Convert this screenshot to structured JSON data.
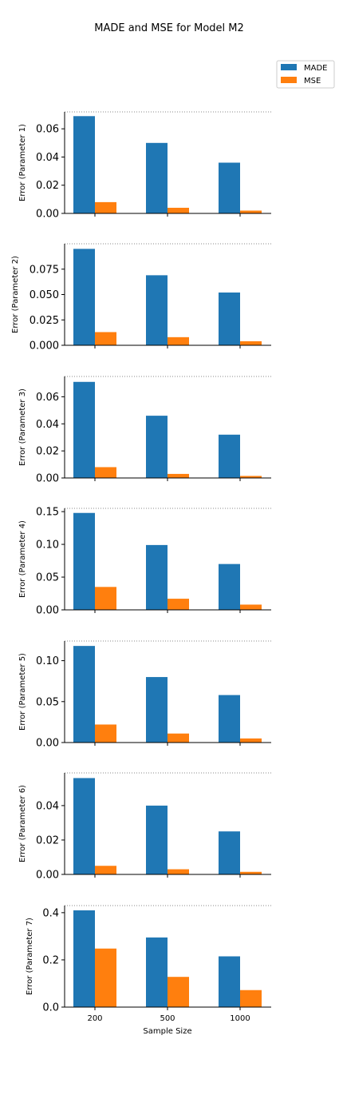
{
  "figure": {
    "title": "MADE and MSE for Model M2",
    "xlabel": "Sample Size",
    "legend": [
      {
        "label": "MADE",
        "color": "#1f77b4"
      },
      {
        "label": "MSE",
        "color": "#ff7f0e"
      }
    ],
    "legend_position": "top-right"
  },
  "chart_data": [
    {
      "type": "bar",
      "categories": [
        "200",
        "500",
        "1000"
      ],
      "ylabel": "Error (Parameter 1)",
      "ylim": [
        0,
        0.072
      ],
      "yticks": [
        "0.00",
        "0.02",
        "0.04",
        "0.06"
      ],
      "series": [
        {
          "name": "MADE",
          "values": [
            0.069,
            0.05,
            0.036
          ]
        },
        {
          "name": "MSE",
          "values": [
            0.008,
            0.004,
            0.002
          ]
        }
      ]
    },
    {
      "type": "bar",
      "categories": [
        "200",
        "500",
        "1000"
      ],
      "ylabel": "Error (Parameter 2)",
      "ylim": [
        0,
        0.1
      ],
      "yticks": [
        "0.000",
        "0.025",
        "0.050",
        "0.075"
      ],
      "series": [
        {
          "name": "MADE",
          "values": [
            0.095,
            0.069,
            0.052
          ]
        },
        {
          "name": "MSE",
          "values": [
            0.013,
            0.008,
            0.004
          ]
        }
      ]
    },
    {
      "type": "bar",
      "categories": [
        "200",
        "500",
        "1000"
      ],
      "ylabel": "Error (Parameter 3)",
      "ylim": [
        0,
        0.075
      ],
      "yticks": [
        "0.00",
        "0.02",
        "0.04",
        "0.06"
      ],
      "series": [
        {
          "name": "MADE",
          "values": [
            0.071,
            0.046,
            0.032
          ]
        },
        {
          "name": "MSE",
          "values": [
            0.008,
            0.003,
            0.0015
          ]
        }
      ]
    },
    {
      "type": "bar",
      "categories": [
        "200",
        "500",
        "1000"
      ],
      "ylabel": "Error (Parameter 4)",
      "ylim": [
        0,
        0.155
      ],
      "yticks": [
        "0.00",
        "0.05",
        "0.10",
        "0.15"
      ],
      "series": [
        {
          "name": "MADE",
          "values": [
            0.148,
            0.099,
            0.07
          ]
        },
        {
          "name": "MSE",
          "values": [
            0.035,
            0.017,
            0.008
          ]
        }
      ]
    },
    {
      "type": "bar",
      "categories": [
        "200",
        "500",
        "1000"
      ],
      "ylabel": "Error (Parameter 5)",
      "ylim": [
        0,
        0.124
      ],
      "yticks": [
        "0.00",
        "0.05",
        "0.10"
      ],
      "series": [
        {
          "name": "MADE",
          "values": [
            0.118,
            0.08,
            0.058
          ]
        },
        {
          "name": "MSE",
          "values": [
            0.022,
            0.011,
            0.005
          ]
        }
      ]
    },
    {
      "type": "bar",
      "categories": [
        "200",
        "500",
        "1000"
      ],
      "ylabel": "Error (Parameter 6)",
      "ylim": [
        0,
        0.059
      ],
      "yticks": [
        "0.00",
        "0.02",
        "0.04"
      ],
      "series": [
        {
          "name": "MADE",
          "values": [
            0.056,
            0.04,
            0.025
          ]
        },
        {
          "name": "MSE",
          "values": [
            0.005,
            0.003,
            0.0015
          ]
        }
      ]
    },
    {
      "type": "bar",
      "categories": [
        "200",
        "500",
        "1000"
      ],
      "ylabel": "Error (Parameter 7)",
      "ylim": [
        0,
        0.43
      ],
      "yticks": [
        "0.0",
        "0.2",
        "0.4"
      ],
      "series": [
        {
          "name": "MADE",
          "values": [
            0.41,
            0.295,
            0.215
          ]
        },
        {
          "name": "MSE",
          "values": [
            0.248,
            0.128,
            0.072
          ]
        }
      ]
    }
  ]
}
